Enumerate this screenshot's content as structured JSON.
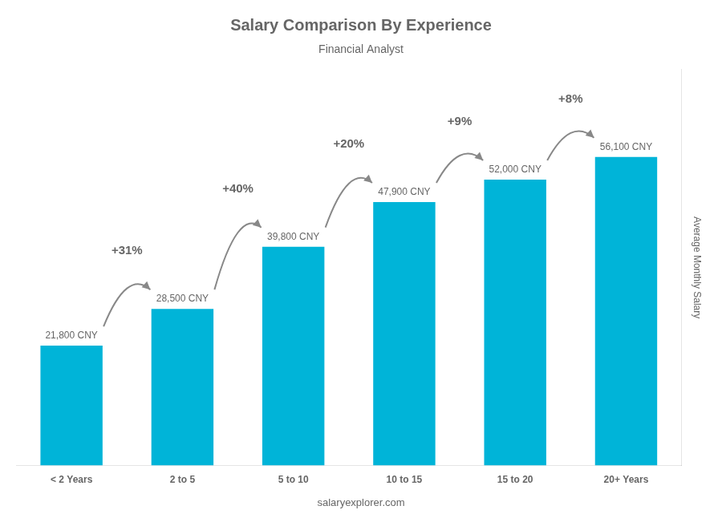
{
  "chart_data": {
    "type": "bar",
    "title": "Salary Comparison By Experience",
    "subtitle": "Financial Analyst",
    "categories": [
      "< 2 Years",
      "2 to 5",
      "5 to 10",
      "10 to 15",
      "15 to 20",
      "20+ Years"
    ],
    "values": [
      21800,
      28500,
      39800,
      47900,
      52000,
      56100
    ],
    "value_labels": [
      "21,800 CNY",
      "28,500 CNY",
      "39,800 CNY",
      "47,900 CNY",
      "52,000 CNY",
      "56,100 CNY"
    ],
    "data_labels": true,
    "annotations": [
      "+31%",
      "+40%",
      "+20%",
      "+9%",
      "+8%"
    ],
    "watermark": "salaryexplorer.com",
    "ylabel": "Average Monthly Salary",
    "color": "#00b4d8",
    "ylim": [
      0,
      72000
    ],
    "tick_labels": "x",
    "grid": false
  }
}
